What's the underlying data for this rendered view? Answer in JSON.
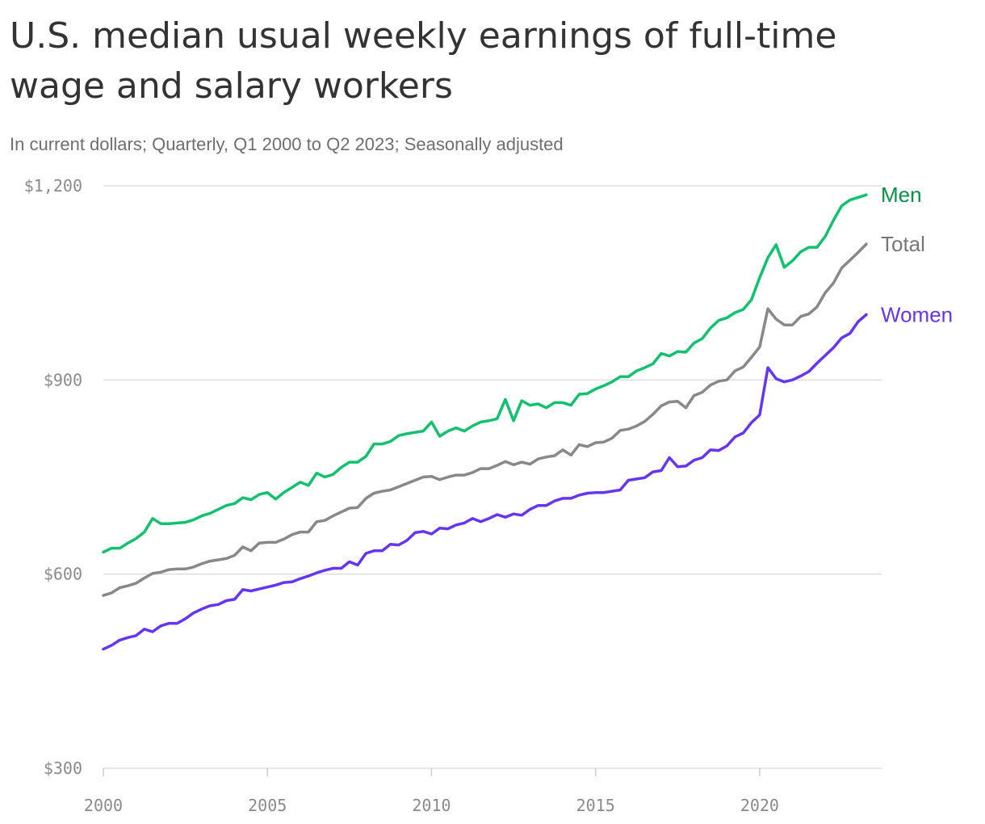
{
  "title": "U.S. median usual weekly earnings of full-time wage and salary workers",
  "subtitle": "In current dollars; Quarterly, Q1 2000 to Q2 2023; Seasonally adjusted",
  "colors": {
    "men": "#12c16e",
    "total": "#888888",
    "women": "#6535f2",
    "men_label": "#0a8f47",
    "grid": "#dddddd",
    "axis": "#cccccc"
  },
  "chart_data": {
    "type": "line",
    "title": "U.S. median usual weekly earnings of full-time wage and salary workers",
    "subtitle": "In current dollars; Quarterly, Q1 2000 to Q2 2023; Seasonally adjusted",
    "xlabel": "",
    "ylabel": "",
    "x_start": 2000.0,
    "x_step": 0.25,
    "xlim": [
      2000,
      2023.25
    ],
    "ylim": [
      300,
      1200
    ],
    "x_ticks": [
      2000,
      2005,
      2010,
      2015,
      2020
    ],
    "x_tick_labels": [
      "2000",
      "2005",
      "2010",
      "2015",
      "2020"
    ],
    "y_ticks": [
      300,
      600,
      900,
      1200
    ],
    "y_tick_labels": [
      "$300",
      "$600",
      "$900",
      "$1,200"
    ],
    "grid": true,
    "legend": "direct labels at line ends",
    "series": [
      {
        "name": "Men",
        "color": "#12c16e",
        "values": [
          634,
          640,
          640,
          648,
          655,
          665,
          686,
          678,
          678,
          679,
          680,
          684,
          690,
          694,
          700,
          706,
          709,
          718,
          715,
          723,
          726,
          716,
          726,
          734,
          742,
          737,
          756,
          750,
          754,
          765,
          773,
          773,
          782,
          801,
          801,
          805,
          814,
          817,
          819,
          821,
          835,
          813,
          821,
          826,
          821,
          829,
          835,
          837,
          840,
          870,
          837,
          868,
          861,
          863,
          857,
          865,
          865,
          861,
          878,
          879,
          886,
          891,
          897,
          905,
          905,
          914,
          919,
          925,
          941,
          937,
          944,
          943,
          957,
          964,
          980,
          992,
          996,
          1004,
          1009,
          1024,
          1058,
          1089,
          1109,
          1074,
          1084,
          1098,
          1105,
          1105,
          1122,
          1147,
          1169,
          1178,
          1182,
          1186
        ]
      },
      {
        "name": "Total",
        "color": "#888888",
        "values": [
          567,
          571,
          579,
          582,
          586,
          594,
          601,
          603,
          607,
          608,
          608,
          611,
          616,
          620,
          622,
          624,
          629,
          642,
          636,
          648,
          649,
          649,
          654,
          661,
          665,
          665,
          681,
          683,
          690,
          696,
          702,
          703,
          717,
          725,
          728,
          730,
          735,
          740,
          745,
          750,
          751,
          746,
          750,
          753,
          753,
          757,
          763,
          763,
          768,
          774,
          769,
          773,
          770,
          778,
          781,
          783,
          792,
          784,
          800,
          797,
          803,
          804,
          810,
          822,
          824,
          829,
          836,
          847,
          860,
          866,
          867,
          857,
          876,
          881,
          892,
          898,
          900,
          914,
          920,
          935,
          951,
          1010,
          994,
          985,
          985,
          998,
          1002,
          1013,
          1035,
          1050,
          1073,
          1085,
          1097,
          1110
        ]
      },
      {
        "name": "Women",
        "color": "#6535f2",
        "values": [
          484,
          490,
          498,
          502,
          505,
          515,
          511,
          520,
          524,
          524,
          531,
          540,
          546,
          551,
          553,
          559,
          561,
          576,
          574,
          577,
          580,
          583,
          587,
          588,
          593,
          597,
          602,
          606,
          609,
          609,
          619,
          614,
          632,
          636,
          636,
          646,
          645,
          652,
          664,
          666,
          662,
          671,
          670,
          676,
          679,
          686,
          681,
          686,
          692,
          688,
          693,
          691,
          700,
          706,
          706,
          713,
          717,
          717,
          722,
          725,
          726,
          726,
          728,
          730,
          745,
          747,
          749,
          758,
          760,
          780,
          766,
          767,
          776,
          780,
          792,
          791,
          798,
          812,
          818,
          834,
          846,
          919,
          902,
          897,
          900,
          906,
          913,
          926,
          938,
          950,
          965,
          972,
          990,
          1001
        ]
      }
    ]
  }
}
